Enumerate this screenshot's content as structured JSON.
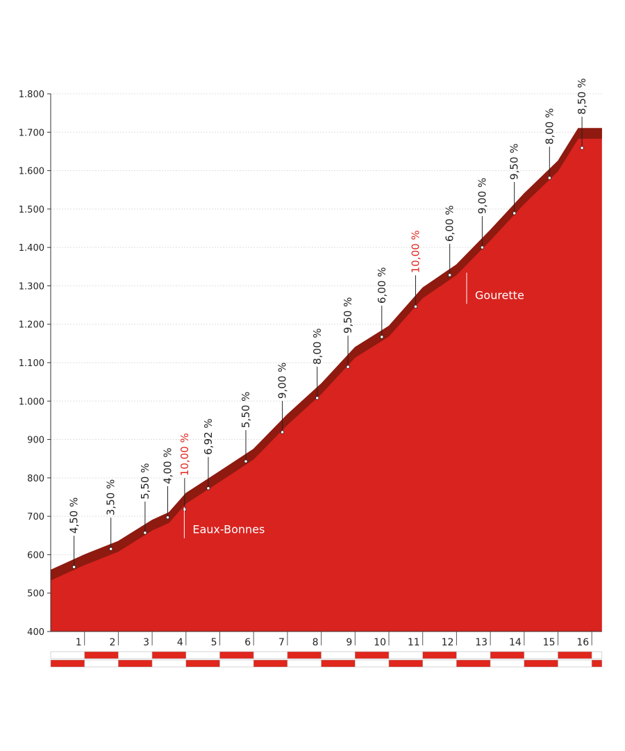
{
  "chart_data": {
    "type": "line",
    "x": [
      0,
      1,
      2,
      3,
      3.5,
      4,
      5,
      6,
      7,
      8,
      9,
      10,
      11,
      12,
      13,
      14,
      15,
      15.6,
      16.3
    ],
    "series": [
      {
        "color": "#d8231f",
        "values": [
          560,
          600,
          635,
          690,
          710,
          760,
          817,
          875,
          965,
          1045,
          1140,
          1195,
          1295,
          1355,
          1445,
          1540,
          1625,
          1710,
          1710
        ]
      }
    ],
    "band_color": "#8e1a10",
    "xlim": [
      0,
      16.3
    ],
    "ylim": [
      400,
      1800
    ],
    "xticks": [
      1,
      2,
      3,
      4,
      5,
      6,
      7,
      8,
      9,
      10,
      11,
      12,
      13,
      14,
      15,
      16
    ],
    "yticks": [
      400,
      500,
      600,
      700,
      800,
      900,
      {
        "value": 1000,
        "label": "1.000"
      },
      {
        "value": 1100,
        "label": "1.100"
      },
      {
        "value": 1200,
        "label": "1.200"
      },
      {
        "value": 1300,
        "label": "1.300"
      },
      {
        "value": 1400,
        "label": "1.400"
      },
      {
        "value": 1500,
        "label": "1.500"
      },
      {
        "value": 1600,
        "label": "1.600"
      },
      {
        "value": 1700,
        "label": "1.700"
      },
      {
        "value": 1800,
        "label": "1.800"
      }
    ],
    "grid": true,
    "annotations": [
      {
        "x": 0.69,
        "y": 568,
        "label": "4,50 %",
        "color": "#222"
      },
      {
        "x": 1.78,
        "y": 615,
        "label": "3,50 %",
        "color": "#222"
      },
      {
        "x": 2.79,
        "y": 657,
        "label": "5,50 %",
        "color": "#222"
      },
      {
        "x": 3.46,
        "y": 697,
        "label": "4,00 %",
        "color": "#222"
      },
      {
        "x": 3.96,
        "y": 718,
        "label": "10,00 %",
        "color": "#e0261d"
      },
      {
        "x": 4.66,
        "y": 773,
        "label": "6,92 %",
        "color": "#222"
      },
      {
        "x": 5.77,
        "y": 843,
        "label": "5,50 %",
        "color": "#222"
      },
      {
        "x": 6.85,
        "y": 919,
        "label": "9,00 %",
        "color": "#222"
      },
      {
        "x": 7.88,
        "y": 1008,
        "label": "8,00 %",
        "color": "#222"
      },
      {
        "x": 8.79,
        "y": 1089,
        "label": "9,50 %",
        "color": "#222"
      },
      {
        "x": 9.79,
        "y": 1167,
        "label": "6,00 %",
        "color": "#222"
      },
      {
        "x": 10.79,
        "y": 1246,
        "label": "10,00 %",
        "color": "#e0261d"
      },
      {
        "x": 11.8,
        "y": 1328,
        "label": "6,00 %",
        "color": "#222"
      },
      {
        "x": 12.76,
        "y": 1400,
        "label": "9,00 %",
        "color": "#222"
      },
      {
        "x": 13.71,
        "y": 1489,
        "label": "9,50 %",
        "color": "#222"
      },
      {
        "x": 14.75,
        "y": 1581,
        "label": "8,00 %",
        "color": "#222"
      },
      {
        "x": 15.71,
        "y": 1659,
        "label": "8,50 %",
        "color": "#222"
      }
    ],
    "places": [
      {
        "name": "Eaux-Bonnes",
        "x": 3.95,
        "y": 670
      },
      {
        "name": "Gourette",
        "x": 12.3,
        "y": 1280
      }
    ]
  }
}
